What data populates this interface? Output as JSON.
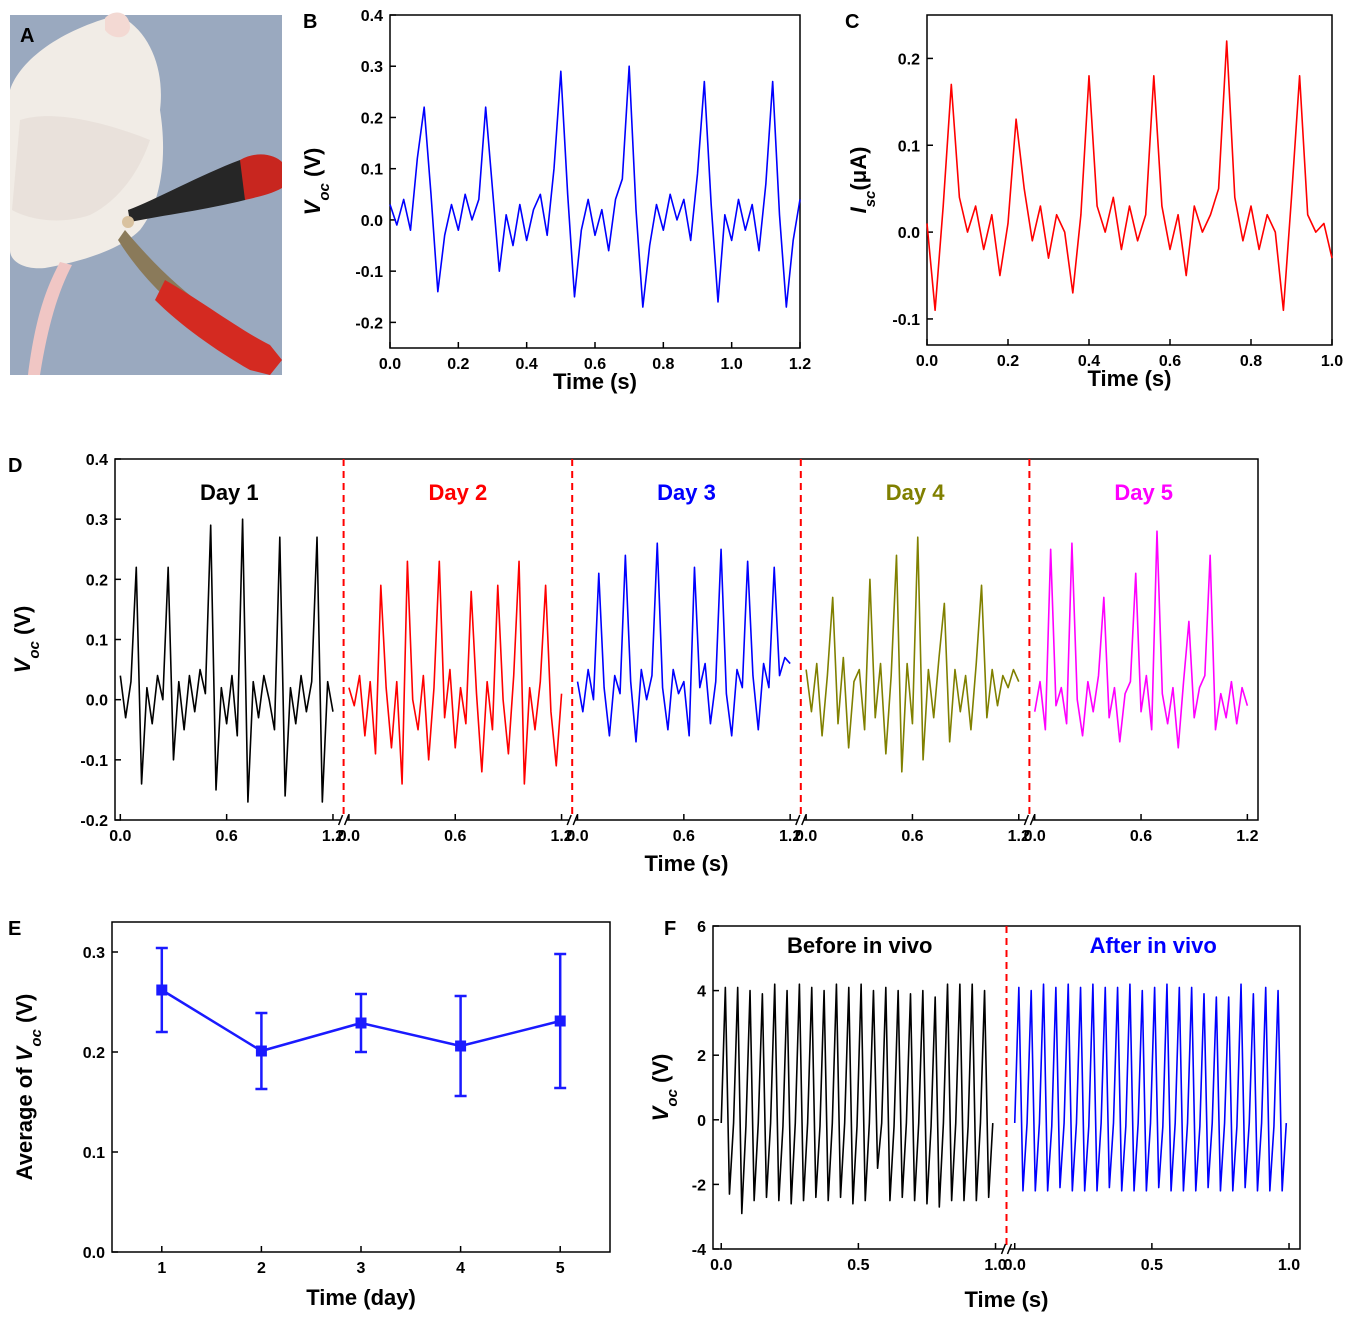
{
  "photo_panel": {
    "panel": "A"
  },
  "chart_data": [
    {
      "type": "line",
      "panel": "B",
      "x_label": "Time (s)",
      "y_label": [
        {
          "text": "V",
          "italic": true
        },
        {
          "text": "oc",
          "italic": true,
          "sub": true
        },
        {
          "text": " (V)"
        }
      ],
      "xlim": [
        0,
        1.2
      ],
      "xticks": [
        {
          "value": 0,
          "label": "0.0"
        },
        0.2,
        0.4,
        0.6,
        0.8,
        {
          "value": 1,
          "label": "1.0"
        },
        1.2
      ],
      "ylim": [
        -0.25,
        0.4
      ],
      "yticks": [
        -0.2,
        -0.1,
        {
          "value": 0,
          "label": "0.0"
        },
        0.1,
        0.2,
        0.3,
        0.4
      ],
      "x": [
        0,
        0.02,
        0.04,
        0.06,
        0.08,
        0.1,
        0.12,
        0.14,
        0.16,
        0.18,
        0.2,
        0.22,
        0.24,
        0.26,
        0.28,
        0.3,
        0.32,
        0.34,
        0.36,
        0.38,
        0.4,
        0.42,
        0.44,
        0.46,
        0.48,
        0.5,
        0.52,
        0.54,
        0.56,
        0.58,
        0.6,
        0.62,
        0.64,
        0.66,
        0.68,
        0.7,
        0.72,
        0.74,
        0.76,
        0.78,
        0.8,
        0.82,
        0.84,
        0.86,
        0.88,
        0.9,
        0.92,
        0.94,
        0.96,
        0.98,
        1,
        1.02,
        1.04,
        1.06,
        1.08,
        1.1,
        1.12,
        1.14,
        1.16,
        1.18,
        1.2
      ],
      "series": [
        {
          "color": "#0000ff",
          "values": [
            0.03,
            -0.01,
            0.04,
            -0.02,
            0.12,
            0.22,
            0.05,
            -0.14,
            -0.03,
            0.03,
            -0.02,
            0.05,
            0,
            0.04,
            0.22,
            0.06,
            -0.1,
            0.01,
            -0.05,
            0.03,
            -0.04,
            0.02,
            0.05,
            -0.03,
            0.1,
            0.29,
            0.05,
            -0.15,
            -0.02,
            0.04,
            -0.03,
            0.02,
            -0.06,
            0.04,
            0.08,
            0.3,
            0.02,
            -0.17,
            -0.05,
            0.03,
            -0.02,
            0.05,
            0,
            0.04,
            -0.04,
            0.09,
            0.27,
            0.03,
            -0.16,
            0.01,
            -0.04,
            0.04,
            -0.02,
            0.03,
            -0.06,
            0.07,
            0.27,
            0.01,
            -0.17,
            -0.04,
            0.04
          ]
        }
      ]
    },
    {
      "type": "line",
      "panel": "C",
      "x_label": "Time (s)",
      "y_label": [
        {
          "text": "I",
          "italic": true
        },
        {
          "text": "sc",
          "italic": true,
          "sub": true
        },
        {
          "text": "(μA)"
        }
      ],
      "xlim": [
        0,
        1
      ],
      "xticks": [
        {
          "value": 0,
          "label": "0.0"
        },
        0.2,
        0.4,
        0.6,
        0.8,
        {
          "value": 1,
          "label": "1.0"
        }
      ],
      "ylim": [
        -0.13,
        0.25
      ],
      "yticks": [
        -0.1,
        {
          "value": 0,
          "label": "0.0"
        },
        0.1,
        0.2
      ],
      "x": [
        0,
        0.02,
        0.04,
        0.06,
        0.08,
        0.1,
        0.12,
        0.14,
        0.16,
        0.18,
        0.2,
        0.22,
        0.24,
        0.26,
        0.28,
        0.3,
        0.32,
        0.34,
        0.36,
        0.38,
        0.4,
        0.42,
        0.44,
        0.46,
        0.48,
        0.5,
        0.52,
        0.54,
        0.56,
        0.58,
        0.6,
        0.62,
        0.64,
        0.66,
        0.68,
        0.7,
        0.72,
        0.74,
        0.76,
        0.78,
        0.8,
        0.82,
        0.84,
        0.86,
        0.88,
        0.9,
        0.92,
        0.94,
        0.96,
        0.98,
        1
      ],
      "series": [
        {
          "color": "#ff0000",
          "values": [
            0.01,
            -0.09,
            0.03,
            0.17,
            0.04,
            0,
            0.03,
            -0.02,
            0.02,
            -0.05,
            0.01,
            0.13,
            0.05,
            -0.01,
            0.03,
            -0.03,
            0.02,
            0,
            -0.07,
            0.02,
            0.18,
            0.03,
            0,
            0.04,
            -0.02,
            0.03,
            -0.01,
            0.02,
            0.18,
            0.03,
            -0.02,
            0.02,
            -0.05,
            0.03,
            0,
            0.02,
            0.05,
            0.22,
            0.04,
            -0.01,
            0.03,
            -0.02,
            0.02,
            0,
            -0.09,
            0.04,
            0.18,
            0.02,
            0,
            0.01,
            -0.03
          ]
        }
      ]
    },
    {
      "type": "line",
      "panel": "D",
      "split_x": true,
      "separator_color": "#ff0000",
      "x_label": "Time (s)",
      "y_label": [
        {
          "text": "V",
          "italic": true
        },
        {
          "text": "oc",
          "italic": true,
          "sub": true
        },
        {
          "text": " (V)"
        }
      ],
      "xlim": [
        -0.03,
        1.26
      ],
      "xticks": [
        {
          "value": 0,
          "label": "0.0"
        },
        0.6,
        1.2
      ],
      "ylim": [
        -0.2,
        0.4
      ],
      "yticks": [
        -0.2,
        -0.1,
        {
          "value": 0,
          "label": "0.0"
        },
        0.1,
        0.2,
        0.3,
        0.4
      ],
      "x": [
        0,
        0.03,
        0.06,
        0.09,
        0.12,
        0.15,
        0.18,
        0.21,
        0.24,
        0.27,
        0.3,
        0.33,
        0.36,
        0.39,
        0.42,
        0.45,
        0.48,
        0.51,
        0.54,
        0.57,
        0.6,
        0.63,
        0.66,
        0.69,
        0.72,
        0.75,
        0.78,
        0.81,
        0.84,
        0.87,
        0.9,
        0.93,
        0.96,
        0.99,
        1.02,
        1.05,
        1.08,
        1.11,
        1.14,
        1.17,
        1.2
      ],
      "series": [
        {
          "name": "Day 1",
          "color": "#000000",
          "values": [
            0.04,
            -0.03,
            0.03,
            0.22,
            -0.14,
            0.02,
            -0.04,
            0.04,
            0,
            0.22,
            -0.1,
            0.03,
            -0.05,
            0.04,
            -0.02,
            0.05,
            0.01,
            0.29,
            -0.15,
            0.02,
            -0.04,
            0.04,
            -0.06,
            0.3,
            -0.17,
            0.03,
            -0.03,
            0.04,
            0,
            -0.05,
            0.27,
            -0.16,
            0.02,
            -0.04,
            0.04,
            -0.02,
            0.03,
            0.27,
            -0.17,
            0.03,
            -0.02
          ]
        },
        {
          "name": "Day 2",
          "color": "#ff0000",
          "values": [
            0.02,
            -0.01,
            0.04,
            -0.06,
            0.03,
            -0.09,
            0.19,
            0.02,
            -0.08,
            0.03,
            -0.14,
            0.23,
            0,
            -0.05,
            0.04,
            -0.1,
            0.02,
            0.23,
            -0.03,
            0.05,
            -0.08,
            0.02,
            -0.04,
            0.18,
            0.01,
            -0.12,
            0.03,
            -0.05,
            0.19,
            0,
            -0.09,
            0.04,
            0.23,
            -0.14,
            0.02,
            -0.05,
            0.03,
            0.19,
            -0.02,
            -0.11,
            0.01
          ]
        },
        {
          "name": "Day 3",
          "color": "#0000ff",
          "values": [
            0.03,
            -0.02,
            0.05,
            0,
            0.21,
            0.02,
            -0.06,
            0.04,
            0.01,
            0.24,
            0.03,
            -0.07,
            0.05,
            0,
            0.04,
            0.26,
            0.02,
            -0.05,
            0.05,
            0.01,
            0.03,
            -0.06,
            0.22,
            0.02,
            0.06,
            -0.04,
            0.03,
            0.25,
            0.01,
            -0.06,
            0.05,
            0.02,
            0.23,
            0.04,
            -0.05,
            0.06,
            0.02,
            0.22,
            0.04,
            0.07,
            0.06
          ]
        },
        {
          "name": "Day 4",
          "color": "#808000",
          "values": [
            0.05,
            -0.02,
            0.06,
            -0.06,
            0.04,
            0.17,
            -0.04,
            0.07,
            -0.08,
            0.03,
            0.05,
            -0.05,
            0.2,
            -0.03,
            0.06,
            -0.09,
            0.04,
            0.24,
            -0.12,
            0.06,
            -0.04,
            0.27,
            -0.1,
            0.05,
            -0.03,
            0.07,
            0.16,
            -0.07,
            0.05,
            -0.02,
            0.04,
            -0.05,
            0.06,
            0.19,
            -0.03,
            0.05,
            -0.01,
            0.04,
            0.02,
            0.05,
            0.03
          ]
        },
        {
          "name": "Day 5",
          "color": "#ff00ff",
          "values": [
            -0.02,
            0.03,
            -0.05,
            0.25,
            -0.01,
            0.02,
            -0.04,
            0.26,
            0,
            -0.06,
            0.03,
            -0.02,
            0.04,
            0.17,
            -0.03,
            0.02,
            -0.07,
            0.01,
            0.03,
            0.21,
            -0.02,
            0.04,
            -0.05,
            0.28,
            0.01,
            -0.04,
            0.02,
            -0.08,
            0.03,
            0.13,
            -0.03,
            0.02,
            0.04,
            0.24,
            -0.05,
            0.01,
            -0.03,
            0.03,
            -0.04,
            0.02,
            -0.01
          ]
        }
      ]
    },
    {
      "type": "errorbar",
      "panel": "E",
      "x_label": "Time (day)",
      "y_label": [
        {
          "text": "Average of "
        },
        {
          "text": "V",
          "italic": true
        },
        {
          "text": "oc",
          "italic": true,
          "sub": true
        },
        {
          "text": " (V)"
        }
      ],
      "xlim": [
        0.5,
        5.5
      ],
      "xticks": [
        1,
        2,
        3,
        4,
        5
      ],
      "ylim": [
        0,
        0.33
      ],
      "yticks": [
        {
          "value": 0,
          "label": "0.0"
        },
        0.1,
        0.2,
        0.3
      ],
      "x": [
        1,
        2,
        3,
        4,
        5
      ],
      "series": [
        {
          "color": "#1a1aff",
          "values": [
            0.262,
            0.201,
            0.229,
            0.206,
            0.231
          ],
          "errors": [
            0.042,
            0.038,
            0.029,
            0.05,
            0.067
          ]
        }
      ]
    },
    {
      "type": "line",
      "panel": "F",
      "split_x": true,
      "separator_color": "#ff0000",
      "x_label": "Time (s)",
      "y_label": [
        {
          "text": "V",
          "italic": true
        },
        {
          "text": "oc",
          "italic": true,
          "sub": true
        },
        {
          "text": " (V)"
        }
      ],
      "xlim": [
        -0.03,
        1.04
      ],
      "xticks": [
        {
          "value": 0,
          "label": "0.0"
        },
        0.5,
        {
          "value": 1,
          "label": "1.0"
        }
      ],
      "ylim": [
        -4,
        6
      ],
      "yticks": [
        -4,
        -2,
        0,
        2,
        4,
        6
      ],
      "x": [
        0,
        0.015,
        0.03,
        0.045,
        0.06,
        0.075,
        0.09,
        0.105,
        0.12,
        0.135,
        0.15,
        0.165,
        0.18,
        0.195,
        0.21,
        0.225,
        0.24,
        0.255,
        0.27,
        0.285,
        0.3,
        0.315,
        0.33,
        0.345,
        0.36,
        0.375,
        0.39,
        0.405,
        0.42,
        0.435,
        0.45,
        0.465,
        0.48,
        0.495,
        0.51,
        0.525,
        0.54,
        0.555,
        0.57,
        0.585,
        0.6,
        0.615,
        0.63,
        0.645,
        0.66,
        0.675,
        0.69,
        0.705,
        0.72,
        0.735,
        0.75,
        0.765,
        0.78,
        0.795,
        0.81,
        0.825,
        0.84,
        0.855,
        0.87,
        0.885,
        0.9,
        0.915,
        0.93,
        0.945,
        0.96,
        0.975,
        0.99
      ],
      "series": [
        {
          "name": "Before in vivo",
          "color": "#000000",
          "values": [
            -0.1,
            4.1,
            -2.3,
            -0.1,
            4.1,
            -2.9,
            -0.2,
            4.0,
            -2.5,
            -0.1,
            3.9,
            -2.4,
            -0.1,
            4.2,
            -2.5,
            -0.2,
            4.0,
            -2.6,
            -0.1,
            4.2,
            -2.5,
            -0.1,
            4.1,
            -2.4,
            -0.2,
            4.0,
            -2.5,
            -0.1,
            4.2,
            -2.4,
            -0.1,
            4.1,
            -2.6,
            -0.2,
            4.2,
            -2.5,
            -0.1,
            4.0,
            -1.5,
            -0.1,
            4.1,
            -2.5,
            -0.2,
            4.0,
            -2.4,
            -0.1,
            3.9,
            -2.5,
            -0.1,
            4.0,
            -2.6,
            -0.2,
            3.8,
            -2.7,
            -0.1,
            4.2,
            -2.5,
            -0.1,
            4.2,
            -2.5,
            -0.2,
            4.2,
            -2.5,
            -0.1,
            4.0,
            -2.4,
            -0.1
          ]
        },
        {
          "name": "After in vivo",
          "color": "#0000ff",
          "values": [
            -0.1,
            4.1,
            -2.2,
            -0.1,
            4.0,
            -2.2,
            -0.1,
            4.2,
            -2.2,
            -0.2,
            4.1,
            -2.1,
            -0.1,
            4.2,
            -2.2,
            -0.1,
            4.1,
            -2.2,
            -0.2,
            4.2,
            -2.2,
            -0.1,
            4.1,
            -2.1,
            -0.1,
            4.1,
            -2.2,
            -0.2,
            4.2,
            -2.2,
            -0.1,
            4.0,
            -2.2,
            -0.1,
            4.1,
            -2.1,
            -0.2,
            4.2,
            -2.2,
            -0.1,
            4.1,
            -2.2,
            -0.1,
            4.1,
            -2.2,
            -0.2,
            3.9,
            -2.1,
            -0.1,
            3.8,
            -2.2,
            -0.1,
            3.8,
            -2.2,
            -0.2,
            4.2,
            -2.1,
            -0.1,
            3.9,
            -2.2,
            -0.1,
            4.1,
            -2.2,
            -0.2,
            4.0,
            -2.2,
            -0.1
          ]
        }
      ]
    }
  ]
}
